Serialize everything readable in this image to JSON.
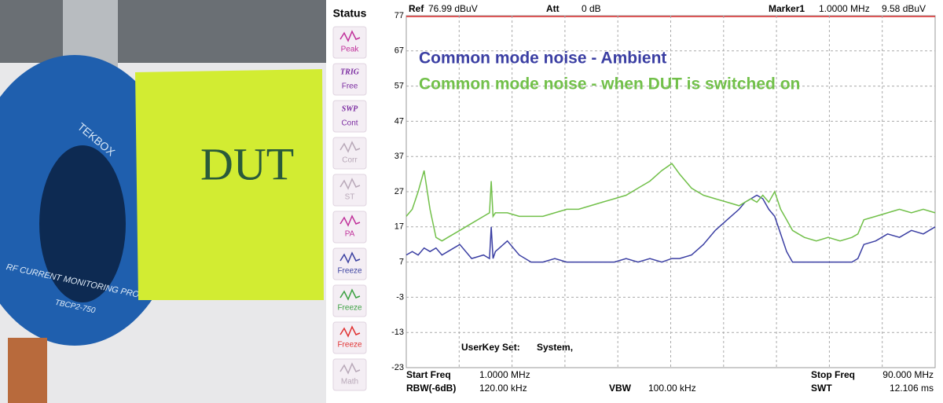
{
  "photo": {
    "label": "DUT",
    "probe_brand": "TEKBOX",
    "probe_text": "RF CURRENT MONITORING PROBE",
    "probe_model": "TBCP2-750"
  },
  "status_panel": {
    "title": "Status",
    "buttons": [
      {
        "label": "Peak",
        "color": "#c0309a"
      },
      {
        "top": "TRIG",
        "label": "Free",
        "color": "#7a2aa0"
      },
      {
        "top": "SWP",
        "label": "Cont",
        "color": "#7a2aa0"
      },
      {
        "label": "Corr",
        "color": "#b8a8b8"
      },
      {
        "label": "ST",
        "color": "#b8a8b8"
      },
      {
        "label": "PA",
        "color": "#c0309a"
      },
      {
        "label": "Freeze",
        "color": "#3a40a0"
      },
      {
        "label": "Freeze",
        "color": "#3aa040"
      },
      {
        "label": "Freeze",
        "color": "#e03030"
      },
      {
        "label": "Math",
        "color": "#b8a8b8"
      }
    ]
  },
  "analyzer": {
    "ref_label": "Ref",
    "ref_value": "76.99 dBuV",
    "att_label": "Att",
    "att_value": "0 dB",
    "marker_label": "Marker1",
    "marker_freq": "1.0000 MHz",
    "marker_level": "9.58 dBuV",
    "userkey_label": "UserKey Set:",
    "userkey_value": "System,",
    "start_label": "Start Freq",
    "start_value": "1.0000 MHz",
    "rbw_label": "RBW(-6dB)",
    "rbw_value": "120.00 kHz",
    "vbw_label": "VBW",
    "vbw_value": "100.00 kHz",
    "stop_label": "Stop Freq",
    "stop_value": "90.000 MHz",
    "swt_label": "SWT",
    "swt_value": "12.106 ms"
  },
  "chart_data": {
    "type": "line",
    "grid": true,
    "xlim": [
      1,
      90
    ],
    "ylim": [
      -23,
      77
    ],
    "yticks": [
      77,
      67,
      57,
      47,
      37,
      27,
      17,
      7,
      -3,
      -13,
      -23
    ],
    "x": [
      1,
      2,
      3,
      4,
      5,
      6,
      7,
      8,
      10,
      12,
      14,
      15,
      15.3,
      15.6,
      16,
      18,
      20,
      22,
      24,
      26,
      28,
      30,
      32,
      34,
      36,
      38,
      40,
      42,
      44,
      45.7,
      47,
      49,
      51,
      53,
      55,
      57,
      58,
      59,
      60,
      61,
      62,
      63,
      64,
      65,
      66,
      67,
      68,
      70,
      72,
      74,
      76,
      77,
      78,
      80,
      82,
      84,
      86,
      88,
      90
    ],
    "series": [
      {
        "name": "Common mode noise - Ambient",
        "color": "#3b3fa3",
        "values": [
          9,
          10,
          9,
          11,
          10,
          11,
          9,
          10,
          12,
          8,
          9,
          8,
          17,
          8,
          10,
          13,
          9,
          7,
          7,
          8,
          7,
          7,
          7,
          7,
          7,
          8,
          7,
          8,
          7,
          8,
          8,
          9,
          12,
          16,
          19,
          22,
          24,
          25,
          26,
          25,
          22,
          20,
          15,
          10,
          7,
          7,
          7,
          7,
          7,
          7,
          7,
          8,
          12,
          13,
          15,
          14,
          16,
          15,
          17
        ]
      },
      {
        "name": "Common mode noise - when DUT is switched on",
        "color": "#72c04a",
        "values": [
          20,
          22,
          27,
          33,
          22,
          14,
          13,
          14,
          16,
          18,
          20,
          21,
          30,
          20,
          21,
          21,
          20,
          20,
          20,
          21,
          22,
          22,
          23,
          24,
          25,
          26,
          28,
          30,
          33,
          35,
          32,
          28,
          26,
          25,
          24,
          23,
          24,
          25,
          24,
          26,
          24,
          27,
          22,
          19,
          16,
          15,
          14,
          13,
          14,
          13,
          14,
          15,
          19,
          20,
          21,
          22,
          21,
          22,
          21
        ]
      }
    ]
  }
}
